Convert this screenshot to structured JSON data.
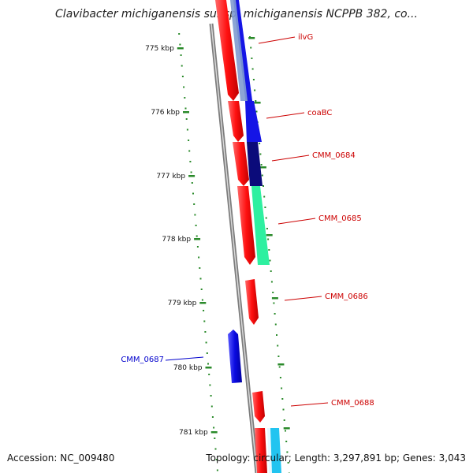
{
  "title": "Clavibacter michiganensis subsp. michiganensis NCPPB 382, co...",
  "footer": {
    "accession": "Accession: NC_009480",
    "summary": "Topology: circular; Length: 3,297,891 bp; Genes: 3,043"
  },
  "ticks": [
    "775 kbp",
    "776 kbp",
    "777 kbp",
    "778 kbp",
    "779 kbp",
    "780 kbp",
    "781 kbp"
  ],
  "gene_labels": [
    {
      "name": "ilvG",
      "color": "#cc0000"
    },
    {
      "name": "coaBC",
      "color": "#cc0000"
    },
    {
      "name": "CMM_0684",
      "color": "#cc0000"
    },
    {
      "name": "CMM_0685",
      "color": "#cc0000"
    },
    {
      "name": "CMM_0686",
      "color": "#cc0000"
    },
    {
      "name": "CMM_0687",
      "color": "#0000cc"
    },
    {
      "name": "CMM_0688",
      "color": "#cc0000"
    }
  ],
  "colors": {
    "forward_gene": "#ff1a1a",
    "reverse_gene": "#0a0adc",
    "backbone": "#8c8c8c",
    "ruler": "#2a8a2a",
    "orf_blue": "#1515e6",
    "orf_navy": "#0b0b7a",
    "orf_green": "#2ef0a0",
    "orf_cyan": "#22c4f0"
  }
}
